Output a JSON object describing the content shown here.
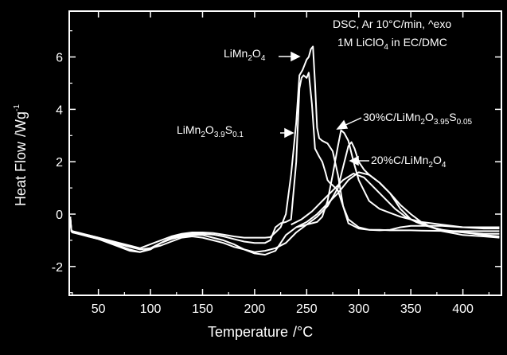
{
  "chart_data": {
    "type": "line",
    "title": "",
    "xlabel": "Temperature",
    "xlabel_unit": "/°C",
    "ylabel": "Heat Flow",
    "ylabel_unit": "/Wg",
    "ylabel_unit_exp": "-1",
    "xlim": [
      22,
      437
    ],
    "ylim": [
      -3.1,
      7.75
    ],
    "x_ticks": [
      50,
      100,
      150,
      200,
      250,
      300,
      350,
      400
    ],
    "y_ticks": [
      -2,
      0,
      2,
      4,
      6
    ],
    "grid": false,
    "legend": "none",
    "colors": {
      "background": "#000000",
      "foreground": "#ffffff",
      "series": "#ffffff"
    },
    "info_text": {
      "line1": "DSC, Ar 10°C/min, ^exo",
      "line2_a": "1M LiClO",
      "line2_sub": "4",
      "line2_b": " in EC/DMC"
    },
    "annotations": [
      {
        "base": "LiMn",
        "sub1": "2",
        "mid": "O",
        "sub2": "4",
        "mid2": "",
        "sub3": ""
      },
      {
        "base": "LiMn",
        "sub1": "2",
        "mid": "O",
        "sub2": "3.9",
        "mid2": "S",
        "sub3": "0.1"
      },
      {
        "base": "30%C/LiMn",
        "sub1": "2",
        "mid": "O",
        "sub2": "3.95",
        "mid2": "S",
        "sub3": "0.05"
      },
      {
        "base": "20%C/LiMn",
        "sub1": "2",
        "mid": "O",
        "sub2": "4",
        "mid2": "",
        "sub3": ""
      }
    ],
    "series": [
      {
        "x": [
          23,
          24,
          25,
          30,
          40,
          50,
          60,
          70,
          80,
          90,
          100,
          110,
          120,
          130,
          140,
          150,
          160,
          170,
          180,
          190,
          200,
          210,
          215,
          220,
          225,
          230,
          235,
          240,
          243,
          246,
          248,
          250,
          252,
          254,
          256,
          258,
          260,
          262,
          265,
          270,
          275,
          280,
          285,
          290,
          300,
          310,
          320,
          330,
          340,
          350,
          360,
          380,
          400,
          420,
          435
        ],
        "y": [
          -0.1,
          -0.6,
          -0.65,
          -0.7,
          -0.8,
          -0.9,
          -1.0,
          -1.1,
          -1.2,
          -1.3,
          -1.15,
          -1.0,
          -0.85,
          -0.75,
          -0.7,
          -0.7,
          -0.72,
          -0.78,
          -0.85,
          -0.9,
          -0.9,
          -0.9,
          -0.88,
          -0.7,
          -0.5,
          0.0,
          1.5,
          3.5,
          5.3,
          5.5,
          5.7,
          5.9,
          6.0,
          6.3,
          6.4,
          5.0,
          3.3,
          2.9,
          2.8,
          2.7,
          2.4,
          1.5,
          0.3,
          -0.35,
          -0.55,
          -0.6,
          -0.6,
          -0.62,
          -0.62,
          -0.62,
          -0.63,
          -0.64,
          -0.65,
          -0.65,
          -0.65
        ]
      },
      {
        "x": [
          23,
          24,
          25,
          30,
          40,
          50,
          60,
          70,
          80,
          90,
          100,
          110,
          120,
          130,
          140,
          150,
          160,
          170,
          180,
          190,
          200,
          210,
          215,
          220,
          225,
          230,
          235,
          240,
          243,
          245,
          247,
          250,
          252,
          255,
          258,
          262,
          265,
          268,
          270,
          272,
          275,
          280,
          285,
          290,
          300,
          310,
          320,
          330,
          340,
          350,
          360,
          380,
          400,
          420,
          435
        ],
        "y": [
          -0.1,
          -0.65,
          -0.7,
          -0.72,
          -0.8,
          -0.9,
          -1.05,
          -1.2,
          -1.35,
          -1.45,
          -1.3,
          -1.1,
          -0.9,
          -0.8,
          -0.75,
          -0.75,
          -0.78,
          -0.85,
          -0.95,
          -1.05,
          -1.1,
          -1.1,
          -1.0,
          -0.5,
          -0.35,
          -0.3,
          -0.2,
          2.0,
          4.8,
          5.2,
          5.3,
          5.2,
          5.4,
          4.2,
          2.5,
          2.2,
          2.0,
          1.6,
          1.3,
          1.2,
          1.1,
          0.9,
          0.3,
          -0.2,
          -0.5,
          -0.6,
          -0.62,
          -0.6,
          -0.5,
          -0.45,
          -0.45,
          -0.45,
          -0.5,
          -0.5,
          -0.5
        ]
      },
      {
        "x": [
          23,
          24,
          25,
          30,
          40,
          50,
          60,
          70,
          80,
          90,
          100,
          110,
          120,
          130,
          140,
          150,
          160,
          170,
          180,
          190,
          200,
          210,
          220,
          230,
          240,
          250,
          255,
          260,
          265,
          270,
          275,
          280,
          283,
          286,
          290,
          295,
          300,
          310,
          320,
          330,
          340,
          350,
          360,
          370,
          380,
          400,
          420,
          435
        ],
        "y": [
          -0.1,
          -0.6,
          -0.68,
          -0.72,
          -0.85,
          -0.95,
          -1.1,
          -1.25,
          -1.4,
          -1.45,
          -1.35,
          -1.1,
          -0.95,
          -0.85,
          -0.8,
          -0.8,
          -0.9,
          -1.0,
          -1.15,
          -1.35,
          -1.5,
          -1.55,
          -1.4,
          -0.8,
          -0.5,
          -0.4,
          -0.35,
          -0.3,
          -0.1,
          0.5,
          1.5,
          2.6,
          3.2,
          3.1,
          2.8,
          2.0,
          1.3,
          0.5,
          0.2,
          0.05,
          -0.1,
          -0.2,
          -0.3,
          -0.35,
          -0.4,
          -0.5,
          -0.55,
          -0.55
        ]
      },
      {
        "x": [
          23,
          24,
          25,
          30,
          40,
          50,
          60,
          70,
          80,
          90,
          100,
          110,
          120,
          130,
          140,
          150,
          160,
          170,
          180,
          190,
          200,
          210,
          220,
          230,
          240,
          250,
          260,
          270,
          280,
          285,
          290,
          293,
          296,
          300,
          305,
          310,
          320,
          330,
          340,
          350,
          360,
          370,
          380,
          400,
          420,
          435
        ],
        "y": [
          -0.1,
          -0.65,
          -0.7,
          -0.75,
          -0.85,
          -0.95,
          -1.05,
          -1.15,
          -1.25,
          -1.35,
          -1.3,
          -1.2,
          -1.05,
          -0.9,
          -0.85,
          -0.9,
          -1.0,
          -1.1,
          -1.25,
          -1.35,
          -1.45,
          -1.4,
          -1.3,
          -1.1,
          -0.7,
          -0.4,
          -0.1,
          0.3,
          1.0,
          1.8,
          2.6,
          2.75,
          2.5,
          2.0,
          1.7,
          1.5,
          1.2,
          0.8,
          0.2,
          -0.2,
          -0.35,
          -0.5,
          -0.6,
          -0.7,
          -0.75,
          -0.75
        ]
      },
      {
        "x": [
          235,
          245,
          255,
          265,
          275,
          285,
          295,
          305,
          315,
          325,
          335,
          345,
          355,
          365,
          375,
          385,
          400,
          420,
          435
        ],
        "y": [
          -0.4,
          -0.2,
          0.1,
          0.5,
          0.9,
          1.3,
          1.55,
          1.4,
          1.0,
          0.6,
          0.2,
          -0.1,
          -0.3,
          -0.45,
          -0.55,
          -0.65,
          -0.7,
          -0.8,
          -0.85
        ]
      },
      {
        "x": [
          240,
          250,
          260,
          270,
          280,
          290,
          300,
          310,
          320,
          330,
          340,
          350,
          360,
          370,
          380,
          400,
          420,
          435
        ],
        "y": [
          -0.5,
          -0.3,
          0.0,
          0.4,
          0.8,
          1.3,
          1.6,
          1.5,
          1.2,
          0.8,
          0.35,
          0.0,
          -0.3,
          -0.5,
          -0.65,
          -0.8,
          -0.85,
          -0.9
        ]
      }
    ]
  }
}
